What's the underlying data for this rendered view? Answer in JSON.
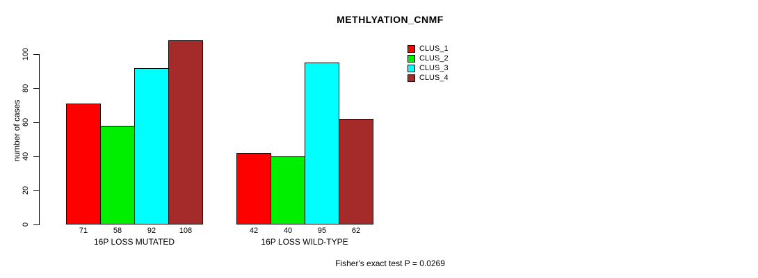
{
  "title": "METHLYATION_CNMF",
  "footer": "Fisher's exact test P = 0.0269",
  "chart_data": {
    "type": "bar",
    "title": "METHLYATION_CNMF",
    "ylabel": "number of cases",
    "xlabel": "",
    "categories": [
      "16P LOSS MUTATED",
      "16P LOSS WILD-TYPE"
    ],
    "series": [
      {
        "name": "CLUS_1",
        "color": "#ff0000",
        "values": [
          71,
          42
        ]
      },
      {
        "name": "CLUS_2",
        "color": "#00ee00",
        "values": [
          58,
          40
        ]
      },
      {
        "name": "CLUS_3",
        "color": "#00ffff",
        "values": [
          92,
          95
        ]
      },
      {
        "name": "CLUS_4",
        "color": "#a52a2a",
        "values": [
          108,
          62
        ]
      }
    ],
    "yticks": [
      0,
      20,
      40,
      60,
      80,
      100
    ],
    "ylim": [
      0,
      108
    ],
    "grid": false,
    "legend_position": "top-right",
    "bar_value_labels": true,
    "annotation": "Fisher's exact test P = 0.0269"
  }
}
